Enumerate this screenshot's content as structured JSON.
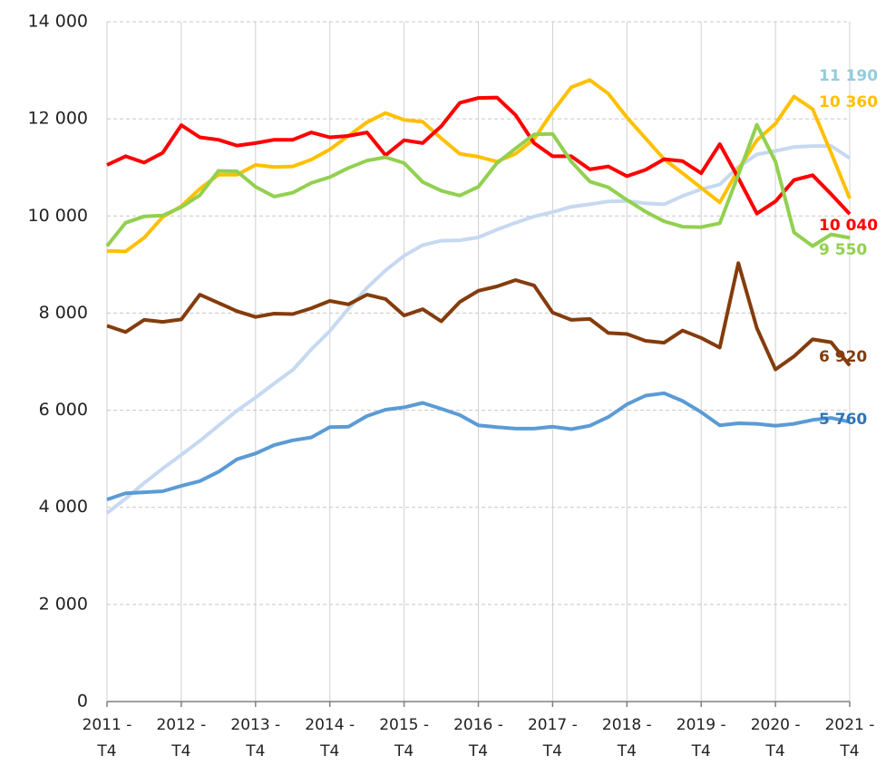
{
  "chart_data": {
    "type": "line",
    "categories": [
      "2011 - T4",
      null,
      null,
      null,
      "2012 - T4",
      null,
      null,
      null,
      "2013 - T4",
      null,
      null,
      null,
      "2014 - T4",
      null,
      null,
      null,
      "2015 - T4",
      null,
      null,
      null,
      "2016 - T4",
      null,
      null,
      null,
      "2017 - T4",
      null,
      null,
      null,
      "2018 - T4",
      null,
      null,
      null,
      "2019 - T4",
      null,
      null,
      null,
      "2020 - T4",
      null,
      null,
      null,
      "2021 - T4"
    ],
    "ylim": [
      0,
      14000
    ],
    "yticks": [
      0,
      {
        "value": 2000,
        "label": "2 000"
      },
      {
        "value": 4000,
        "label": "4 000"
      },
      {
        "value": 6000,
        "label": "6 000"
      },
      {
        "value": 8000,
        "label": "8 000"
      },
      {
        "value": 10000,
        "label": "10 000"
      },
      {
        "value": 12000,
        "label": "12 000"
      },
      {
        "value": 14000,
        "label": "14 000"
      }
    ],
    "grid": true,
    "series": [
      {
        "color": "#c6d9f1",
        "label_color": "#92cddc",
        "values": [
          3880,
          4180,
          4500,
          4800,
          5080,
          5370,
          5680,
          5990,
          6260,
          6550,
          6830,
          7250,
          7630,
          8090,
          8520,
          8880,
          9180,
          9400,
          9490,
          9500,
          9560,
          9720,
          9860,
          9990,
          10080,
          10190,
          10240,
          10300,
          10310,
          10260,
          10240,
          10410,
          10550,
          10650,
          11010,
          11270,
          11340,
          11420,
          11440,
          11440,
          11190
        ],
        "value_labels": [
          null,
          null,
          null,
          null,
          null,
          null,
          null,
          null,
          null,
          null,
          null,
          null,
          null,
          null,
          null,
          null,
          null,
          null,
          null,
          null,
          null,
          null,
          null,
          null,
          null,
          null,
          null,
          null,
          null,
          null,
          null,
          null,
          null,
          null,
          null,
          null,
          null,
          null,
          null,
          null,
          "11 190"
        ]
      },
      {
        "color": "#ffc000",
        "label_color": "#ffc000",
        "values": [
          9280,
          9270,
          9550,
          9980,
          10200,
          10560,
          10850,
          10850,
          11050,
          11010,
          11020,
          11160,
          11370,
          11650,
          11930,
          12120,
          11980,
          11940,
          11600,
          11280,
          11220,
          11120,
          11280,
          11580,
          12150,
          12650,
          12800,
          12520,
          12030,
          11600,
          11170,
          10880,
          10580,
          10280,
          10960,
          11560,
          11900,
          12460,
          12200,
          11300,
          10360
        ],
        "value_labels": [
          null,
          null,
          null,
          null,
          null,
          null,
          null,
          null,
          null,
          null,
          null,
          null,
          null,
          null,
          null,
          null,
          null,
          null,
          null,
          null,
          null,
          null,
          null,
          null,
          null,
          null,
          null,
          null,
          null,
          null,
          null,
          null,
          null,
          null,
          null,
          null,
          null,
          null,
          null,
          null,
          "10 360"
        ]
      },
      {
        "color": "#ff0000",
        "label_color": "#ff0000",
        "values": [
          11050,
          11230,
          11100,
          11300,
          11870,
          11620,
          11570,
          11450,
          11500,
          11570,
          11570,
          11720,
          11620,
          11650,
          11720,
          11250,
          11560,
          11500,
          11850,
          12330,
          12430,
          12440,
          12080,
          11500,
          11230,
          11230,
          10960,
          11020,
          10820,
          10950,
          11170,
          11130,
          10880,
          11480,
          10780,
          10050,
          10300,
          10740,
          10840,
          10450,
          10040
        ],
        "value_labels": [
          null,
          null,
          null,
          null,
          null,
          null,
          null,
          null,
          null,
          null,
          null,
          null,
          null,
          null,
          null,
          null,
          null,
          null,
          null,
          null,
          null,
          null,
          null,
          null,
          null,
          null,
          null,
          null,
          null,
          null,
          null,
          null,
          null,
          null,
          null,
          null,
          null,
          null,
          null,
          null,
          "10 040"
        ]
      },
      {
        "color": "#92d050",
        "label_color": "#92d050",
        "values": [
          9380,
          9860,
          9990,
          10010,
          10180,
          10430,
          10930,
          10920,
          10600,
          10400,
          10480,
          10680,
          10800,
          10990,
          11140,
          11210,
          11090,
          10700,
          10520,
          10420,
          10600,
          11090,
          11390,
          11680,
          11690,
          11120,
          10710,
          10590,
          10330,
          10090,
          9890,
          9780,
          9770,
          9850,
          10850,
          11880,
          11120,
          9660,
          9380,
          9620,
          9550
        ],
        "value_labels": [
          null,
          null,
          null,
          null,
          null,
          null,
          null,
          null,
          null,
          null,
          null,
          null,
          null,
          null,
          null,
          null,
          null,
          null,
          null,
          null,
          null,
          null,
          null,
          null,
          null,
          null,
          null,
          null,
          null,
          null,
          null,
          null,
          null,
          null,
          null,
          null,
          null,
          null,
          null,
          null,
          "9 550"
        ]
      },
      {
        "color": "#843c0c",
        "label_color": "#843c0c",
        "values": [
          7740,
          7610,
          7860,
          7820,
          7870,
          8380,
          8210,
          8040,
          7920,
          7990,
          7980,
          8100,
          8250,
          8180,
          8380,
          8290,
          7950,
          8080,
          7830,
          8230,
          8460,
          8550,
          8680,
          8570,
          8010,
          7860,
          7880,
          7590,
          7570,
          7430,
          7390,
          7640,
          7490,
          7290,
          9030,
          7690,
          6840,
          7110,
          7460,
          7400,
          6920
        ],
        "value_labels": [
          null,
          null,
          null,
          null,
          null,
          null,
          null,
          null,
          null,
          null,
          null,
          null,
          null,
          null,
          null,
          null,
          null,
          null,
          null,
          null,
          null,
          null,
          null,
          null,
          null,
          null,
          null,
          null,
          null,
          null,
          null,
          null,
          null,
          null,
          null,
          null,
          null,
          null,
          null,
          null,
          "6 920"
        ]
      },
      {
        "color": "#5b9bd5",
        "label_color": "#2e75b6",
        "values": [
          4160,
          4290,
          4310,
          4330,
          4440,
          4540,
          4730,
          4990,
          5110,
          5280,
          5380,
          5440,
          5650,
          5660,
          5880,
          6010,
          6060,
          6150,
          6030,
          5900,
          5690,
          5650,
          5620,
          5620,
          5660,
          5610,
          5680,
          5860,
          6120,
          6300,
          6350,
          6190,
          5960,
          5690,
          5730,
          5720,
          5680,
          5720,
          5800,
          5840,
          5760
        ],
        "value_labels": [
          null,
          null,
          null,
          null,
          null,
          null,
          null,
          null,
          null,
          null,
          null,
          null,
          null,
          null,
          null,
          null,
          null,
          null,
          null,
          null,
          null,
          null,
          null,
          null,
          null,
          null,
          null,
          null,
          null,
          null,
          null,
          null,
          null,
          null,
          null,
          null,
          null,
          null,
          null,
          null,
          "5 760"
        ]
      }
    ]
  }
}
